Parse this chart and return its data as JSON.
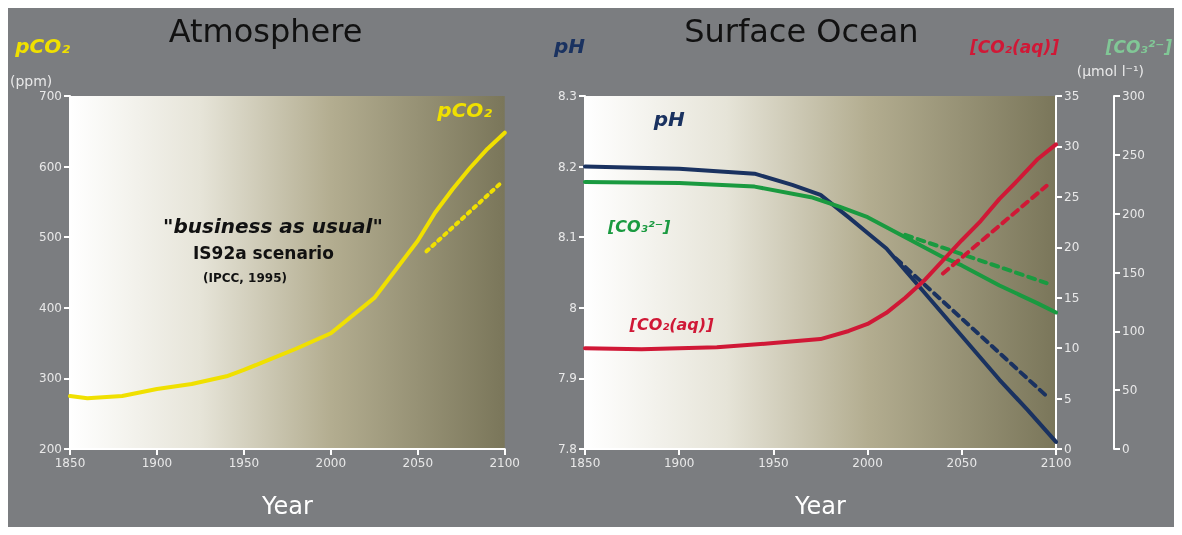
{
  "chart_data": [
    {
      "type": "line",
      "title": "Atmosphere",
      "xlabel": "Year",
      "ylabel": "pCO₂",
      "annotations": [
        "(ppm)",
        "\"business as usual\"",
        "IS92a scenario",
        "(IPCC, 1995)"
      ],
      "xlim": [
        1850,
        2100
      ],
      "xticks": [
        1850,
        1900,
        1950,
        2000,
        2050,
        2100
      ],
      "ylim": [
        200,
        700
      ],
      "yticks": [
        200,
        300,
        400,
        500,
        600,
        700
      ],
      "grid": false,
      "legend": false,
      "marker": "none",
      "series": [
        {
          "name": "pCO₂",
          "color": "#f0e000",
          "line_style": "solid",
          "x": [
            1850,
            1860,
            1880,
            1900,
            1920,
            1940,
            1950,
            1960,
            1980,
            2000,
            2025,
            2050,
            2060,
            2070,
            2080,
            2090,
            2100
          ],
          "values": [
            275,
            272,
            275,
            285,
            292,
            303,
            312,
            322,
            342,
            364,
            414,
            495,
            535,
            568,
            598,
            625,
            648
          ]
        },
        {
          "color": "#f0e000",
          "line_style": "dotted",
          "x": [
            2055,
            2075,
            2097
          ],
          "values": [
            480,
            525,
            575
          ]
        }
      ]
    },
    {
      "type": "line",
      "title": "Surface Ocean",
      "xlabel": "Year",
      "ylabel": "pH",
      "y2label": "[CO₂(aq)]",
      "y3label": "[CO₃²⁻]",
      "annotations": [
        "(μmol l⁻¹)"
      ],
      "xlim": [
        1850,
        2100
      ],
      "xticks": [
        1850,
        1900,
        1950,
        2000,
        2050,
        2100
      ],
      "ylim": [
        7.8,
        8.3
      ],
      "yticks": [
        7.8,
        7.9,
        8.0,
        8.1,
        8.2,
        8.3
      ],
      "y2lim": [
        0,
        35
      ],
      "y2ticks": [
        0,
        5,
        10,
        15,
        20,
        25,
        30,
        35
      ],
      "y3lim": [
        0,
        300
      ],
      "y3ticks": [
        0,
        50,
        100,
        150,
        200,
        250,
        300
      ],
      "grid": false,
      "legend": false,
      "marker": "none",
      "series": [
        {
          "name": "pH",
          "color": "#1a3260",
          "line_style": "solid",
          "x": [
            1850,
            1900,
            1940,
            1960,
            1975,
            1990,
            2000,
            2010,
            2020,
            2030,
            2050,
            2070,
            2085,
            2100
          ],
          "values": [
            8.2,
            8.197,
            8.19,
            8.174,
            8.16,
            8.128,
            8.106,
            8.084,
            8.053,
            8.022,
            7.96,
            7.898,
            7.855,
            7.81
          ]
        },
        {
          "color": "#1a3260",
          "line_style": "dashed",
          "x": [
            2015,
            2095
          ],
          "values": [
            8.07,
            7.875
          ]
        },
        {
          "name": "[CO₃²⁻]",
          "color": "#1a9a40",
          "axis": "y3",
          "line_style": "solid",
          "x": [
            1850,
            1900,
            1940,
            1970,
            1985,
            2000,
            2020,
            2040,
            2050,
            2070,
            2090,
            2100
          ],
          "values": [
            227,
            226,
            223,
            214,
            206,
            197,
            180,
            163,
            156,
            139,
            124,
            116
          ]
        },
        {
          "color": "#1a9a40",
          "axis": "y3",
          "line_style": "dashed",
          "x": [
            2020,
            2095
          ],
          "values": [
            182,
            141
          ]
        },
        {
          "name": "[CO₂(aq)]",
          "color": "#d01836",
          "axis": "y2",
          "line_style": "solid",
          "x": [
            1850,
            1880,
            1920,
            1950,
            1975,
            1990,
            2000,
            2010,
            2020,
            2030,
            2040,
            2050,
            2060,
            2070,
            2080,
            2090,
            2100
          ],
          "values": [
            10.0,
            9.9,
            10.1,
            10.5,
            10.9,
            11.7,
            12.4,
            13.5,
            15.0,
            16.7,
            18.7,
            20.7,
            22.6,
            24.8,
            26.7,
            28.7,
            30.2
          ]
        },
        {
          "color": "#d01836",
          "axis": "y2",
          "line_style": "dashed",
          "x": [
            2040,
            2095
          ],
          "values": [
            17.4,
            26.1
          ]
        }
      ]
    }
  ]
}
